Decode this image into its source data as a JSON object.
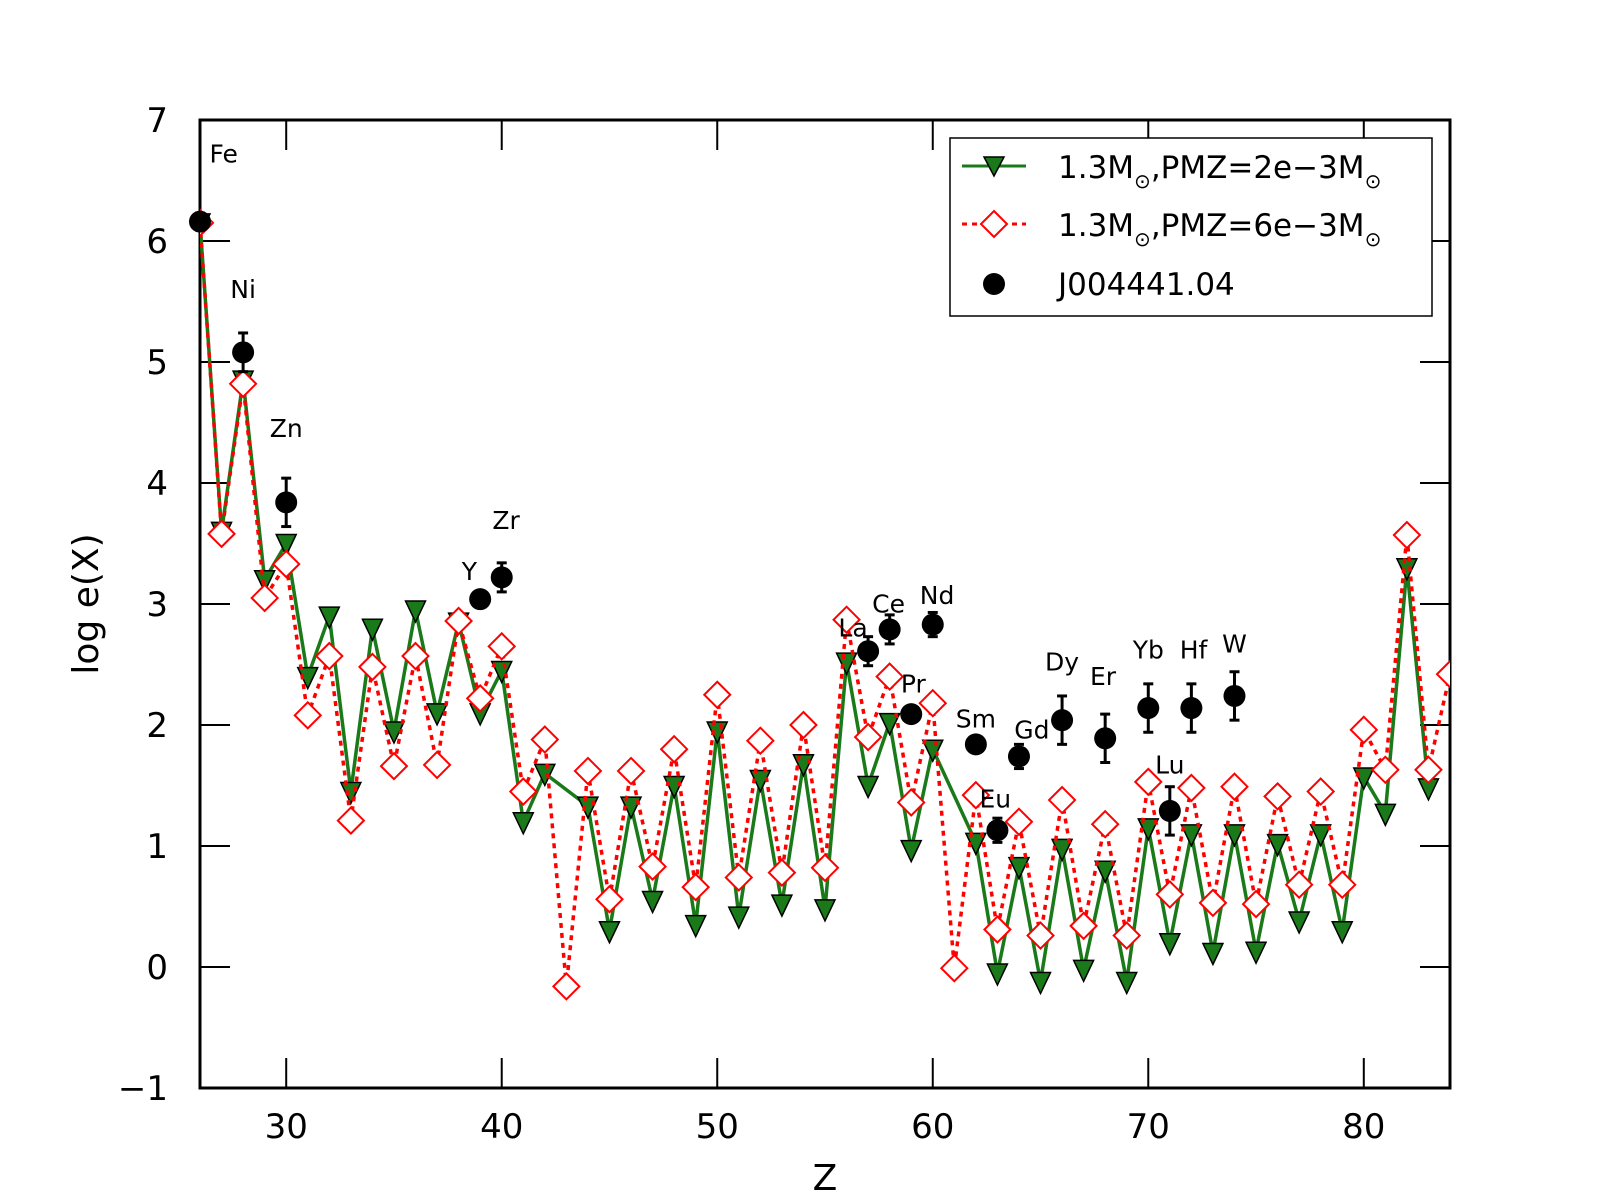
{
  "chart_data": {
    "type": "line",
    "xlabel": "Z",
    "ylabel": "log e(X)",
    "xlim": [
      26,
      84
    ],
    "ylim": [
      -1,
      7
    ],
    "xticks": [
      30,
      40,
      50,
      60,
      70,
      80
    ],
    "yticks": [
      -1,
      0,
      1,
      2,
      3,
      4,
      5,
      6,
      7
    ],
    "legend_position": "top-right",
    "series": [
      {
        "name": "1.3M⊙,PMZ=2e−3M⊙",
        "label_main": "1.3M",
        "label_mid": ",PMZ=2e−3M",
        "sun_symbol": "⊙",
        "color": "#1a7a1a",
        "line_style": "solid",
        "marker": "triangle-down",
        "x": [
          26,
          27,
          28,
          29,
          30,
          31,
          32,
          33,
          34,
          35,
          36,
          37,
          38,
          39,
          40,
          41,
          42,
          44,
          45,
          46,
          47,
          48,
          49,
          50,
          51,
          52,
          53,
          54,
          55,
          56,
          57,
          58,
          59,
          60,
          62,
          63,
          64,
          65,
          66,
          67,
          68,
          69,
          70,
          71,
          72,
          73,
          74,
          75,
          76,
          77,
          78,
          79,
          80,
          81,
          82,
          83
        ],
        "y": [
          6.15,
          3.6,
          4.85,
          3.2,
          3.5,
          2.4,
          2.9,
          1.45,
          2.8,
          1.95,
          2.95,
          2.1,
          2.85,
          2.1,
          2.45,
          1.2,
          1.6,
          1.33,
          0.3,
          1.33,
          0.55,
          1.5,
          0.35,
          1.95,
          0.42,
          1.55,
          0.52,
          1.68,
          0.48,
          2.52,
          1.5,
          2.02,
          0.97,
          1.8,
          1.03,
          -0.05,
          0.83,
          -0.12,
          0.98,
          -0.02,
          0.8,
          -0.12,
          1.15,
          0.2,
          1.1,
          0.12,
          1.1,
          0.13,
          1.02,
          0.38,
          1.1,
          0.3,
          1.57,
          1.27,
          3.3,
          1.48
        ]
      },
      {
        "name": "1.3M⊙,PMZ=6e−3M⊙",
        "label_main": "1.3M",
        "label_mid": ",PMZ=6e−3M",
        "sun_symbol": "⊙",
        "color": "#ff0000",
        "line_style": "dotted",
        "marker": "diamond-open",
        "x": [
          26,
          27,
          28,
          29,
          30,
          31,
          32,
          33,
          34,
          35,
          36,
          37,
          38,
          39,
          40,
          41,
          42,
          43,
          44,
          45,
          46,
          47,
          48,
          49,
          50,
          51,
          52,
          53,
          54,
          55,
          56,
          57,
          58,
          59,
          60,
          61,
          62,
          63,
          64,
          65,
          66,
          67,
          68,
          69,
          70,
          71,
          72,
          73,
          74,
          75,
          76,
          77,
          78,
          79,
          80,
          81,
          82,
          83,
          84
        ],
        "y": [
          6.15,
          3.58,
          4.82,
          3.05,
          3.33,
          2.08,
          2.57,
          1.21,
          2.48,
          1.66,
          2.57,
          1.67,
          2.86,
          2.22,
          2.65,
          1.45,
          1.88,
          -0.16,
          1.62,
          0.56,
          1.62,
          0.83,
          1.8,
          0.66,
          2.25,
          0.74,
          1.87,
          0.78,
          2.0,
          0.82,
          2.87,
          1.9,
          2.4,
          1.36,
          2.18,
          -0.01,
          1.42,
          0.31,
          1.2,
          0.26,
          1.38,
          0.34,
          1.18,
          0.26,
          1.53,
          0.6,
          1.48,
          0.53,
          1.49,
          0.52,
          1.41,
          0.68,
          1.45,
          0.68,
          1.96,
          1.63,
          3.57,
          1.63,
          2.42
        ]
      },
      {
        "name": "J004441.04",
        "color": "#000000",
        "marker": "circle-filled",
        "x": [
          26,
          28,
          30,
          39,
          40,
          57,
          58,
          59,
          60,
          62,
          63,
          64,
          66,
          68,
          70,
          71,
          72,
          74
        ],
        "y": [
          6.16,
          5.08,
          3.84,
          3.04,
          3.22,
          2.61,
          2.79,
          2.09,
          2.83,
          1.84,
          1.13,
          1.74,
          2.04,
          1.89,
          2.14,
          1.29,
          2.14,
          2.24
        ],
        "yerr": [
          0.07,
          0.16,
          0.2,
          0.0,
          0.12,
          0.12,
          0.12,
          0.0,
          0.1,
          0.0,
          0.1,
          0.1,
          0.2,
          0.2,
          0.2,
          0.2,
          0.2,
          0.2
        ]
      }
    ],
    "element_labels": [
      {
        "text": "Fe",
        "x": 27.1,
        "y": 6.65
      },
      {
        "text": "Ni",
        "x": 28.0,
        "y": 5.53
      },
      {
        "text": "Zn",
        "x": 30.0,
        "y": 4.38
      },
      {
        "text": "Y",
        "x": 38.5,
        "y": 3.2
      },
      {
        "text": "Zr",
        "x": 40.2,
        "y": 3.62
      },
      {
        "text": "La",
        "x": 56.3,
        "y": 2.73
      },
      {
        "text": "Ce",
        "x": 57.95,
        "y": 2.93
      },
      {
        "text": "Nd",
        "x": 60.2,
        "y": 3.0
      },
      {
        "text": "Pr",
        "x": 59.1,
        "y": 2.27
      },
      {
        "text": "Sm",
        "x": 62.0,
        "y": 1.98
      },
      {
        "text": "Gd",
        "x": 64.6,
        "y": 1.89
      },
      {
        "text": "Eu",
        "x": 62.9,
        "y": 1.32
      },
      {
        "text": "Dy",
        "x": 66.0,
        "y": 2.45
      },
      {
        "text": "Er",
        "x": 67.9,
        "y": 2.33
      },
      {
        "text": "Yb",
        "x": 70.0,
        "y": 2.55
      },
      {
        "text": "Hf",
        "x": 72.1,
        "y": 2.55
      },
      {
        "text": "W",
        "x": 74.0,
        "y": 2.6
      },
      {
        "text": "Lu",
        "x": 71.0,
        "y": 1.6
      }
    ]
  }
}
